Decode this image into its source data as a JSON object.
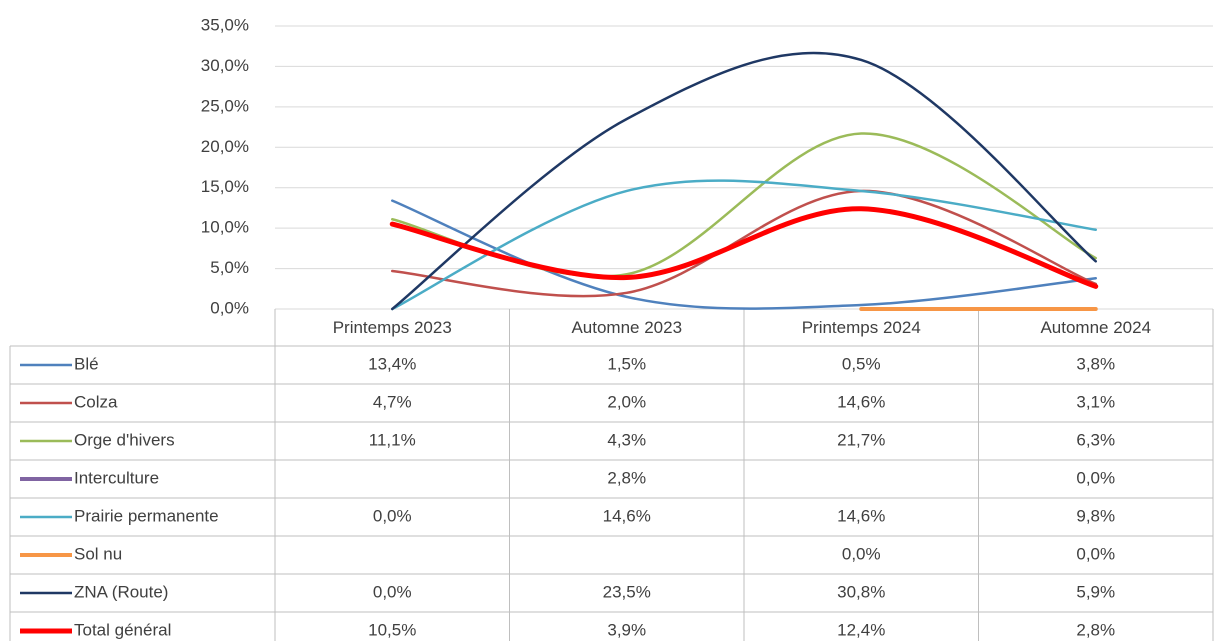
{
  "chart_data": {
    "type": "line",
    "smooth": true,
    "grid": true,
    "categories": [
      "Printemps 2023",
      "Automne 2023",
      "Printemps 2024",
      "Automne 2024"
    ],
    "ylim": [
      0,
      35
    ],
    "yticks": [
      {
        "value": 0,
        "label": "0,0%"
      },
      {
        "value": 5,
        "label": "5,0%"
      },
      {
        "value": 10,
        "label": "10,0%"
      },
      {
        "value": 15,
        "label": "15,0%"
      },
      {
        "value": 20,
        "label": "20,0%"
      },
      {
        "value": 25,
        "label": "25,0%"
      },
      {
        "value": 30,
        "label": "30,0%"
      },
      {
        "value": 35,
        "label": "35,0%"
      }
    ],
    "series": [
      {
        "name": "Blé",
        "color": "#4f81bd",
        "width": 2.5,
        "values": [
          13.4,
          1.5,
          0.5,
          3.8
        ],
        "value_labels": [
          "13,4%",
          "1,5%",
          "0,5%",
          "3,8%"
        ]
      },
      {
        "name": "Colza",
        "color": "#c0504d",
        "width": 2.5,
        "values": [
          4.7,
          2.0,
          14.6,
          3.1
        ],
        "value_labels": [
          "4,7%",
          "2,0%",
          "14,6%",
          "3,1%"
        ]
      },
      {
        "name": "Orge d'hivers",
        "color": "#9bbb59",
        "width": 2.5,
        "values": [
          11.1,
          4.3,
          21.7,
          6.3
        ],
        "value_labels": [
          "11,1%",
          "4,3%",
          "21,7%",
          "6,3%"
        ]
      },
      {
        "name": "Interculture",
        "color": "#8064a2",
        "width": 4,
        "values": [
          null,
          2.8,
          null,
          0.0
        ],
        "value_labels": [
          null,
          "2,8%",
          null,
          "0,0%"
        ]
      },
      {
        "name": "Prairie permanente",
        "color": "#4bacc6",
        "width": 2.5,
        "values": [
          0.0,
          14.6,
          14.6,
          9.8
        ],
        "value_labels": [
          "0,0%",
          "14,6%",
          "14,6%",
          "9,8%"
        ]
      },
      {
        "name": "Sol nu",
        "color": "#f79646",
        "width": 4,
        "values": [
          null,
          null,
          0.0,
          0.0
        ],
        "value_labels": [
          null,
          null,
          "0,0%",
          "0,0%"
        ]
      },
      {
        "name": "ZNA (Route)",
        "color": "#1f3864",
        "width": 2.5,
        "values": [
          0.0,
          23.5,
          30.8,
          5.9
        ],
        "value_labels": [
          "0,0%",
          "23,5%",
          "30,8%",
          "5,9%"
        ]
      },
      {
        "name": "Total général",
        "color": "#ff0000",
        "width": 5,
        "values": [
          10.5,
          3.9,
          12.4,
          2.8
        ],
        "value_labels": [
          "10,5%",
          "3,9%",
          "12,4%",
          "2,8%"
        ]
      }
    ]
  }
}
